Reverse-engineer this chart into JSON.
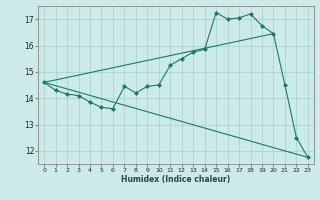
{
  "xlabel": "Humidex (Indice chaleur)",
  "bg_color": "#cceae8",
  "grid_color": "#aad4d0",
  "line_color": "#1a7a6a",
  "xlim": [
    -0.5,
    23.5
  ],
  "ylim": [
    11.5,
    17.5
  ],
  "yticks": [
    12,
    13,
    14,
    15,
    16,
    17
  ],
  "xticks": [
    0,
    1,
    2,
    3,
    4,
    5,
    6,
    7,
    8,
    9,
    10,
    11,
    12,
    13,
    14,
    15,
    16,
    17,
    18,
    19,
    20,
    21,
    22,
    23
  ],
  "series1_x": [
    0,
    1,
    2,
    3,
    4,
    5,
    6,
    7,
    8,
    9,
    10,
    11,
    12,
    13,
    14,
    15,
    16,
    17,
    18,
    19,
    20,
    21,
    22,
    23
  ],
  "series1_y": [
    14.6,
    14.3,
    14.15,
    14.1,
    13.85,
    13.65,
    13.6,
    14.45,
    14.2,
    14.45,
    14.5,
    15.25,
    15.5,
    15.75,
    15.85,
    17.25,
    17.0,
    17.05,
    17.2,
    16.75,
    16.45,
    14.5,
    12.5,
    11.75
  ],
  "series2_x": [
    0,
    20
  ],
  "series2_y": [
    14.6,
    16.45
  ],
  "series3_x": [
    0,
    23
  ],
  "series3_y": [
    14.6,
    11.75
  ]
}
